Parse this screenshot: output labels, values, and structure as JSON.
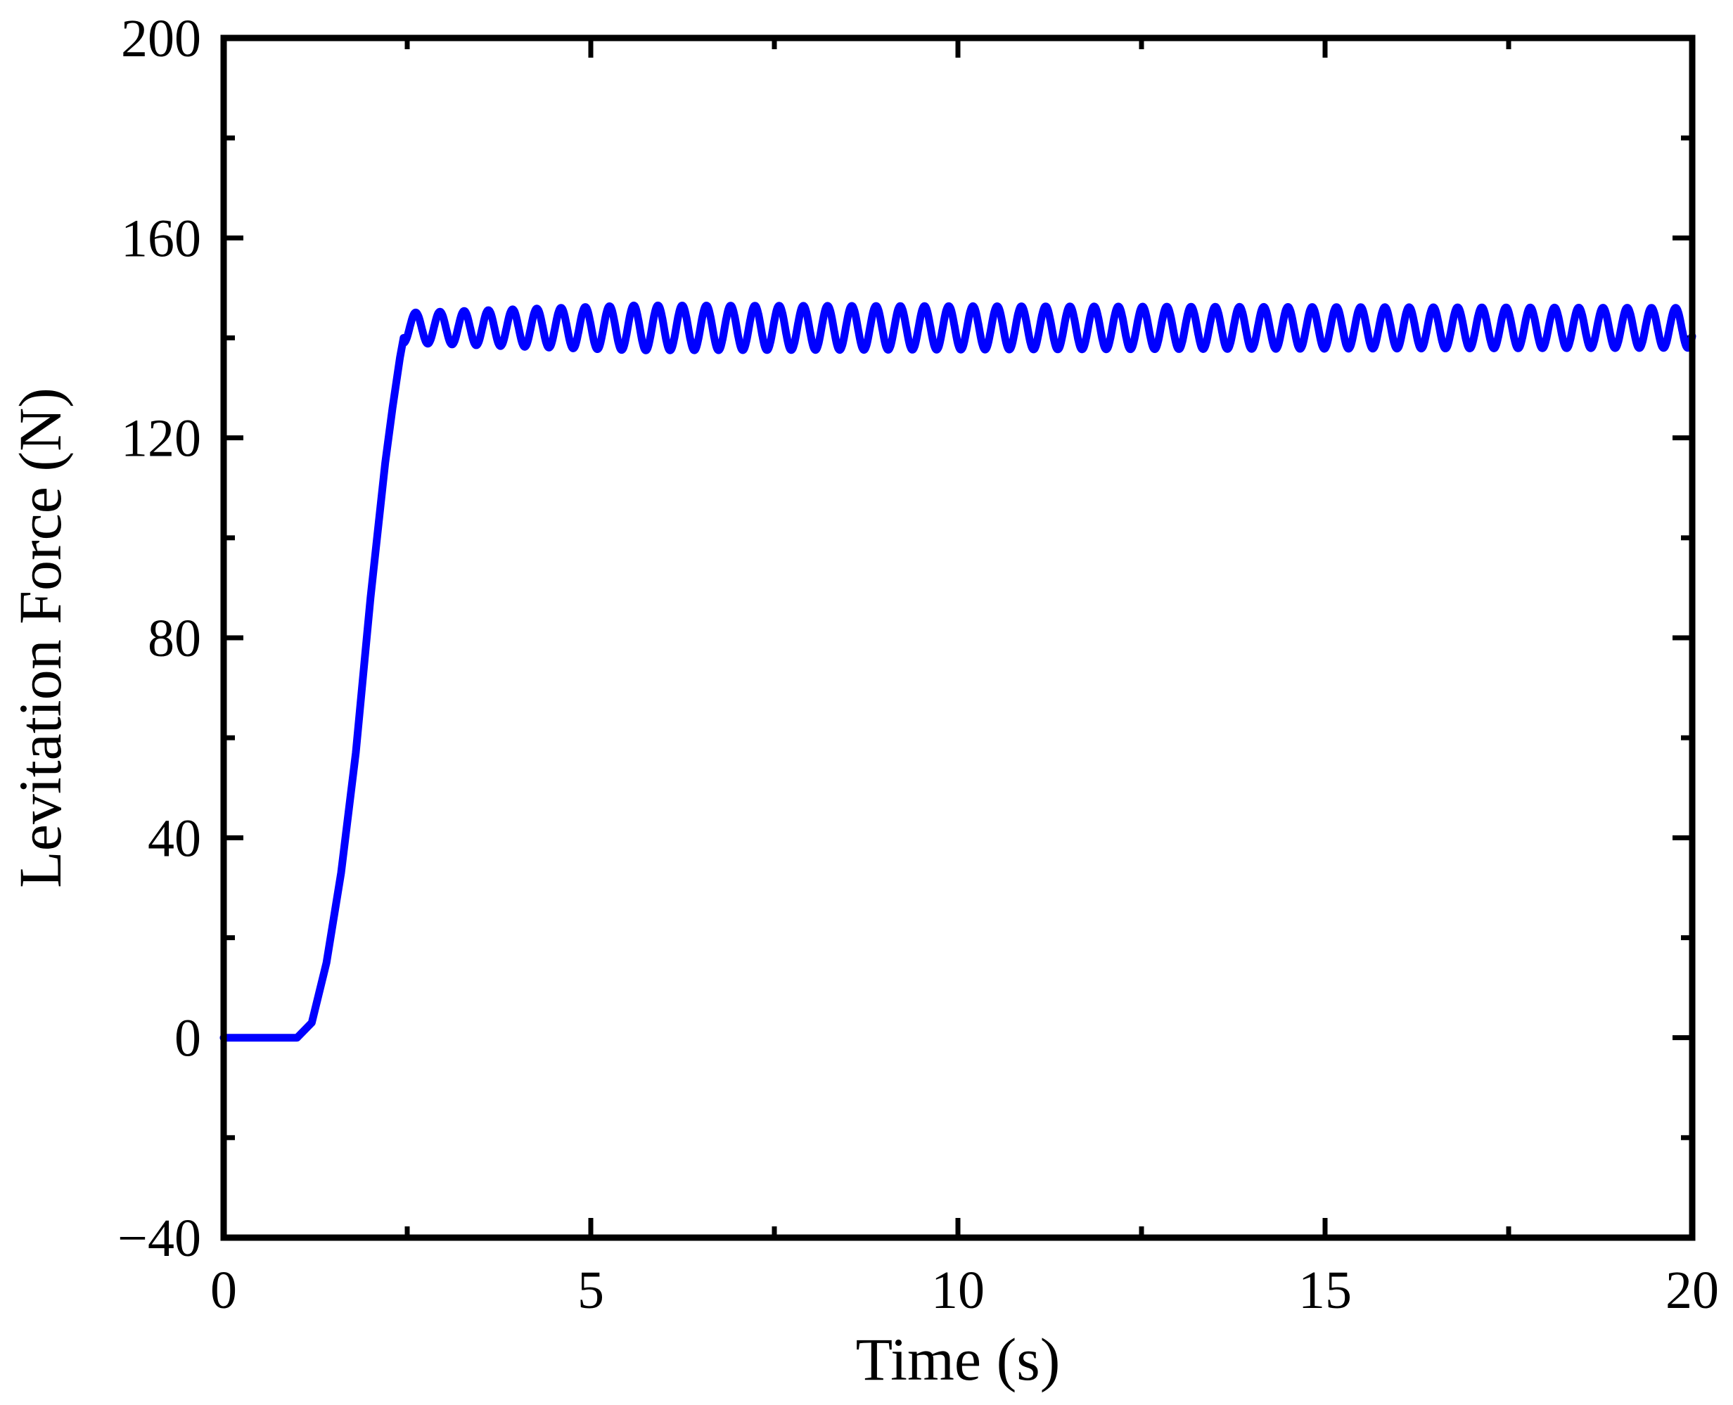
{
  "chart_data": {
    "type": "line",
    "title": "",
    "xlabel": "Time (s)",
    "ylabel": "Levitation Force  (N)",
    "xlim": [
      0,
      20
    ],
    "ylim": [
      -40,
      200
    ],
    "xticks": [
      0,
      5,
      10,
      15,
      20
    ],
    "xtick_labels": [
      "0",
      "5",
      "10",
      "15",
      "20"
    ],
    "x_minor_ticks": [
      2.5,
      7.5,
      12.5,
      17.5
    ],
    "yticks": [
      -40,
      0,
      40,
      80,
      120,
      160,
      200
    ],
    "ytick_labels": [
      "−40",
      "0",
      "40",
      "80",
      "120",
      "160",
      "200"
    ],
    "y_minor_ticks": [
      -20,
      20,
      60,
      100,
      140,
      180
    ],
    "grid": false,
    "legend": "none",
    "series": [
      {
        "color": "#0000ff",
        "segments": [
          {
            "shape": "flat",
            "x": [
              0,
              1.0
            ],
            "y": [
              0,
              0
            ]
          },
          {
            "shape": "rise",
            "x": [
              1.0,
              1.2,
              1.4,
              1.6,
              1.8,
              2.0,
              2.2,
              2.3,
              2.4,
              2.45
            ],
            "y": [
              0,
              3,
              15,
              33,
              57,
              88,
              115,
              126,
              136,
              140
            ]
          },
          {
            "shape": "oscillation",
            "x_start": 2.45,
            "x_end": 20,
            "center": 142,
            "amplitude_start": 3,
            "amplitude_max": 4.5,
            "amplitude_end": 4,
            "period": 0.33
          }
        ]
      }
    ]
  }
}
